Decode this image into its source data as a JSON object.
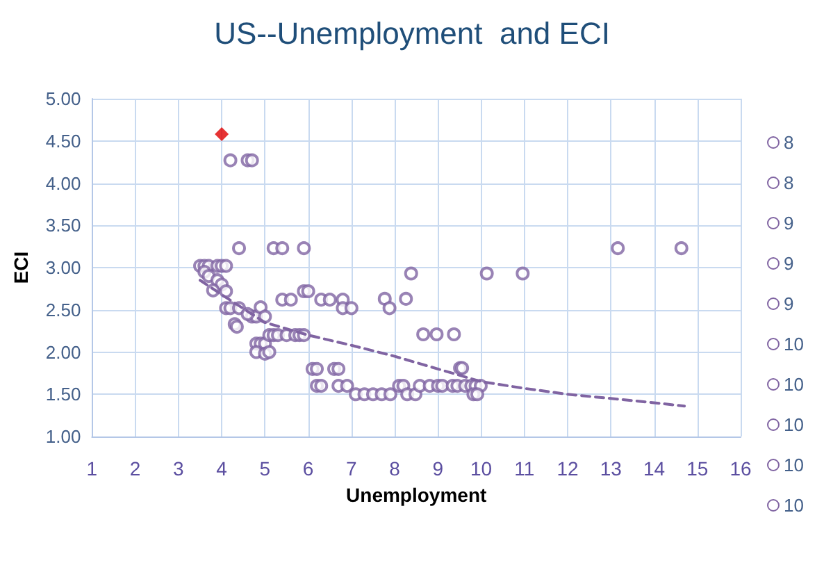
{
  "chart_data": {
    "type": "scatter",
    "title": "US--Unemployment  and ECI",
    "xlabel": "Unemployment",
    "ylabel": "ECI",
    "xlim": [
      1,
      16
    ],
    "xticks": [
      1,
      2,
      3,
      4,
      5,
      6,
      7,
      8,
      9,
      10,
      11,
      12,
      13,
      14,
      15,
      16
    ],
    "ylim": [
      1,
      5
    ],
    "yticks": [
      {
        "value": 1,
        "label": "1.00"
      },
      {
        "value": 1.5,
        "label": "1.50"
      },
      {
        "value": 2,
        "label": "2.00"
      },
      {
        "value": 2.5,
        "label": "2.50"
      },
      {
        "value": 3,
        "label": "3.00"
      },
      {
        "value": 3.5,
        "label": "3.50"
      },
      {
        "value": 4,
        "label": "4.00"
      },
      {
        "value": 4.5,
        "label": "4.50"
      },
      {
        "value": 5,
        "label": "5.00"
      }
    ],
    "grid": true,
    "marker": "circle",
    "series": [
      {
        "color": "#8064a2",
        "x": [
          4.2,
          4.6,
          4.7,
          4.4,
          5.2,
          5.4,
          5.9,
          3.5,
          3.6,
          3.7,
          3.9,
          4.0,
          4.1,
          3.6,
          3.7,
          3.9,
          4.0,
          3.8,
          4.1,
          4.1,
          4.2,
          4.4,
          4.7,
          4.8,
          4.6,
          4.9,
          5.0,
          4.3,
          4.35,
          4.8,
          4.9,
          5.0,
          4.8,
          5.0,
          5.1,
          5.1,
          5.2,
          5.3,
          5.5,
          5.7,
          5.8,
          5.9,
          5.4,
          5.6,
          5.9,
          6.0,
          6.3,
          6.5,
          6.8,
          6.8,
          7.0,
          6.1,
          6.2,
          6.6,
          6.7,
          6.2,
          6.3,
          6.7,
          6.9,
          7.1,
          7.3,
          7.5,
          7.7,
          7.9,
          7.77,
          7.88,
          8.26,
          8.38,
          10.13,
          10.96,
          13.16,
          14.63,
          8.66,
          8.97,
          9.37,
          9.51,
          9.56,
          8.1,
          8.2,
          8.29,
          8.48,
          8.58,
          8.81,
          9.0,
          9.1,
          9.34,
          9.45,
          9.63,
          9.77,
          9.87,
          9.99,
          9.82,
          9.91
        ],
        "values": [
          4.27,
          4.27,
          4.27,
          3.23,
          3.23,
          3.23,
          3.23,
          3.02,
          3.02,
          3.02,
          3.02,
          3.02,
          3.02,
          2.95,
          2.9,
          2.85,
          2.8,
          2.73,
          2.72,
          2.52,
          2.52,
          2.52,
          2.42,
          2.42,
          2.45,
          2.53,
          2.42,
          2.33,
          2.3,
          2.1,
          2.1,
          2.1,
          2.0,
          1.98,
          2.0,
          2.2,
          2.2,
          2.2,
          2.2,
          2.2,
          2.2,
          2.2,
          2.62,
          2.62,
          2.72,
          2.72,
          2.62,
          2.62,
          2.62,
          2.52,
          2.52,
          1.8,
          1.8,
          1.8,
          1.8,
          1.6,
          1.6,
          1.6,
          1.6,
          1.5,
          1.5,
          1.5,
          1.5,
          1.5,
          2.63,
          2.52,
          2.63,
          2.93,
          2.93,
          2.93,
          3.23,
          3.23,
          2.21,
          2.21,
          2.21,
          1.81,
          1.81,
          1.6,
          1.6,
          1.5,
          1.5,
          1.6,
          1.6,
          1.6,
          1.6,
          1.6,
          1.6,
          1.6,
          1.6,
          1.6,
          1.6,
          1.5,
          1.5
        ]
      },
      {
        "type": "scatter",
        "color": "#e00000",
        "marker": "diamond",
        "x": [
          4.0
        ],
        "values": [
          4.58
        ]
      },
      {
        "type": "line",
        "color": "#8064a2",
        "line_style": "dashed",
        "marker": "none",
        "x": [
          3.5,
          4,
          5,
          6,
          7,
          8,
          9,
          10,
          11,
          12,
          13,
          14,
          14.7
        ],
        "values": [
          2.85,
          2.68,
          2.35,
          2.2,
          2.08,
          1.95,
          1.8,
          1.65,
          1.57,
          1.5,
          1.45,
          1.4,
          1.36
        ]
      }
    ],
    "annotations": [
      "8",
      "8",
      "9",
      "9",
      "9",
      "10",
      "10",
      "10",
      "10",
      "10"
    ]
  }
}
